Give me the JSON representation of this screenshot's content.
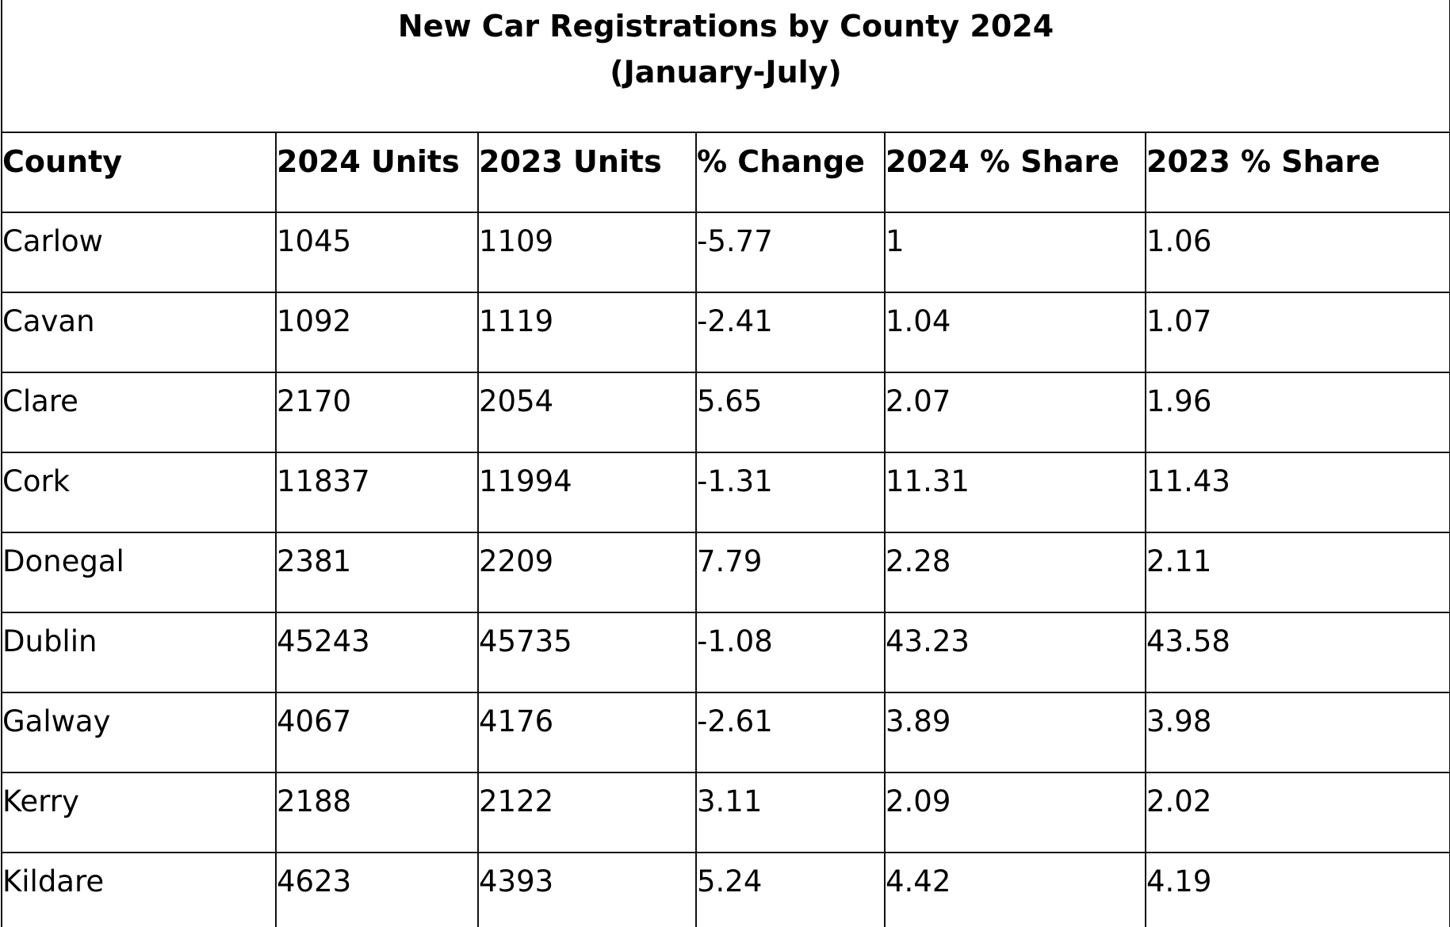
{
  "table": {
    "title": "New Car Registrations by County 2024",
    "subtitle": "(January-July)",
    "columns": [
      "County",
      "2024 Units",
      "2023 Units",
      "% Change",
      "2024 % Share",
      "2023 % Share"
    ],
    "rows": [
      [
        "Carlow",
        1045,
        1109,
        -5.77,
        1,
        1.06
      ],
      [
        "Cavan",
        1092,
        1119,
        -2.41,
        1.04,
        1.07
      ],
      [
        "Clare",
        2170,
        2054,
        5.65,
        2.07,
        1.96
      ],
      [
        "Cork",
        11837,
        11994,
        -1.31,
        11.31,
        11.43
      ],
      [
        "Donegal",
        2381,
        2209,
        7.79,
        2.28,
        2.11
      ],
      [
        "Dublin",
        45243,
        45735,
        -1.08,
        43.23,
        43.58
      ],
      [
        "Galway",
        4067,
        4176,
        -2.61,
        3.89,
        3.98
      ],
      [
        "Kerry",
        2188,
        2122,
        3.11,
        2.09,
        2.02
      ],
      [
        "Kildare",
        4623,
        4393,
        5.24,
        4.42,
        4.19
      ]
    ]
  }
}
